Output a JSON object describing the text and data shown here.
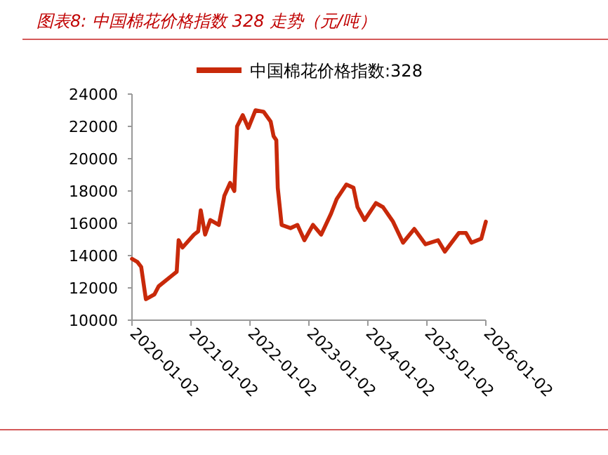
{
  "chart_data": {
    "type": "line",
    "title": "图表8:  中国棉花价格指数 328 走势（元/吨）",
    "x": [
      "2020-01-02",
      "2020-02-05",
      "2020-02-28",
      "2020-03-28",
      "2020-05-20",
      "2020-06-15",
      "2020-09-10",
      "2020-10-05",
      "2020-10-17",
      "2020-11-10",
      "2021-01-20",
      "2021-02-15",
      "2021-03-03",
      "2021-03-30",
      "2021-05-01",
      "2021-06-23",
      "2021-07-27",
      "2021-09-01",
      "2021-09-27",
      "2021-10-14",
      "2021-11-18",
      "2021-12-23",
      "2022-02-05",
      "2022-03-28",
      "2022-05-10",
      "2022-05-28",
      "2022-06-14",
      "2022-06-23",
      "2022-07-17",
      "2022-09-10",
      "2022-10-23",
      "2022-12-05",
      "2023-01-27",
      "2023-03-19",
      "2023-05-19",
      "2023-06-23",
      "2023-08-22",
      "2023-10-05",
      "2023-10-30",
      "2023-12-13",
      "2024-02-21",
      "2024-04-05",
      "2024-06-06",
      "2024-08-07",
      "2024-10-16",
      "2024-12-24",
      "2025-03-12",
      "2025-04-23",
      "2025-07-19",
      "2025-09-01",
      "2025-10-05",
      "2025-12-05",
      "2026-01-02"
    ],
    "series": [
      {
        "name": "中国棉花价格指数:328",
        "color": "#c8290a",
        "values": [
          13800,
          13600,
          13300,
          11300,
          11600,
          12100,
          12800,
          13000,
          14950,
          14500,
          15300,
          15500,
          16800,
          15300,
          16200,
          15900,
          17700,
          18500,
          18000,
          22000,
          22700,
          21900,
          23000,
          22900,
          22300,
          21400,
          21150,
          18200,
          15900,
          15700,
          15900,
          14950,
          15900,
          15300,
          16600,
          17500,
          18400,
          18200,
          17000,
          16200,
          17250,
          17000,
          16100,
          14800,
          15650,
          14700,
          14950,
          14250,
          15400,
          15400,
          14800,
          15050,
          16100
        ]
      }
    ],
    "xlim": [
      "2020-01-02",
      "2026-01-02"
    ],
    "xticks": [
      "2020-01-02",
      "2021-01-02",
      "2022-01-02",
      "2023-01-02",
      "2024-01-02",
      "2025-01-02",
      "2026-01-02"
    ],
    "ylim": [
      10000,
      24000
    ],
    "yticks": [
      10000,
      12000,
      14000,
      16000,
      18000,
      20000,
      22000,
      24000
    ],
    "legend": "top"
  }
}
